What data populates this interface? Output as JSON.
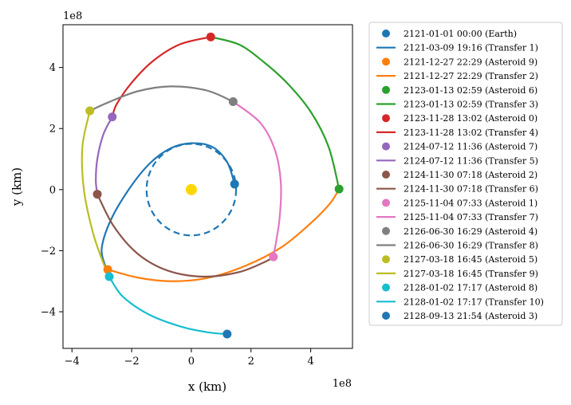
{
  "chart_data": {
    "type": "line",
    "xlabel": "x (km)",
    "ylabel": "y (km)",
    "x_multiplier": "1e8",
    "y_multiplier": "1e8",
    "xlim": [
      -4.3,
      5.4
    ],
    "ylim": [
      -5.2,
      5.4
    ],
    "x_unit_scale": 100000000,
    "xticks": [
      -4,
      -2,
      0,
      2,
      4
    ],
    "yticks": [
      -4,
      -2,
      0,
      2,
      4
    ],
    "grid": false,
    "legend_position": "outside-right",
    "sun": {
      "x": 0,
      "y": 0,
      "color": "#ffd700"
    },
    "earth_orbit": {
      "radius": 1.5,
      "color": "#1f77b4",
      "style": "dashed"
    },
    "series": [
      {
        "name": "2121-01-01 00:00 (Earth)",
        "kind": "point",
        "color": "#1f77b4",
        "x": [
          1.45
        ],
        "y": [
          0.18
        ]
      },
      {
        "name": "2121-03-09 19:16 (Transfer 1)",
        "kind": "line",
        "color": "#1f77b4",
        "x": [
          1.45,
          1.2,
          0.7,
          0.0,
          -0.7,
          -1.4,
          -2.1,
          -2.7,
          -3.0,
          -2.9,
          -2.8
        ],
        "y": [
          0.18,
          0.9,
          1.4,
          1.52,
          1.35,
          0.85,
          0.0,
          -1.0,
          -1.9,
          -2.45,
          -2.62
        ]
      },
      {
        "name": "2121-12-27 22:29 (Asteroid 9)",
        "kind": "point",
        "color": "#ff7f0e",
        "x": [
          -2.8
        ],
        "y": [
          -2.62
        ]
      },
      {
        "name": "2121-12-27 22:29 (Transfer 2)",
        "kind": "line",
        "color": "#ff7f0e",
        "x": [
          -2.8,
          -1.8,
          -0.7,
          0.5,
          1.8,
          3.0,
          4.0,
          4.65,
          4.95
        ],
        "y": [
          -2.62,
          -2.88,
          -3.0,
          -2.9,
          -2.5,
          -1.9,
          -1.1,
          -0.45,
          0.02
        ]
      },
      {
        "name": "2123-01-13 02:59 (Asteroid 6)",
        "kind": "point",
        "color": "#2ca02c",
        "x": [
          4.95
        ],
        "y": [
          0.02
        ]
      },
      {
        "name": "2123-01-13 02:59 (Transfer 3)",
        "kind": "line",
        "color": "#2ca02c",
        "x": [
          4.95,
          4.6,
          4.0,
          3.2,
          2.4,
          1.6,
          0.65
        ],
        "y": [
          0.02,
          1.4,
          2.55,
          3.5,
          4.2,
          4.75,
          5.0
        ]
      },
      {
        "name": "2123-11-28 13:02 (Asteroid 0)",
        "kind": "point",
        "color": "#d62728",
        "x": [
          0.65
        ],
        "y": [
          5.0
        ]
      },
      {
        "name": "2123-11-28 13:02 (Transfer 4)",
        "kind": "line",
        "color": "#d62728",
        "x": [
          0.65,
          -0.4,
          -1.3,
          -2.0,
          -2.5,
          -2.65
        ],
        "y": [
          5.0,
          4.75,
          4.2,
          3.5,
          2.8,
          2.38
        ]
      },
      {
        "name": "2124-07-12 11:36 (Asteroid 7)",
        "kind": "point",
        "color": "#9467bd",
        "x": [
          -2.65
        ],
        "y": [
          2.38
        ]
      },
      {
        "name": "2124-07-12 11:36 (Transfer 5)",
        "kind": "line",
        "color": "#9467bd",
        "x": [
          -2.65,
          -2.95,
          -3.15,
          -3.2,
          -3.15
        ],
        "y": [
          2.38,
          1.8,
          1.0,
          0.3,
          -0.15
        ]
      },
      {
        "name": "2124-11-30 07:18 (Asteroid 2)",
        "kind": "point",
        "color": "#8c564b",
        "x": [
          -3.15
        ],
        "y": [
          -0.15
        ]
      },
      {
        "name": "2124-11-30 07:18 (Transfer 6)",
        "kind": "line",
        "color": "#8c564b",
        "x": [
          -3.15,
          -2.6,
          -1.8,
          -0.8,
          0.4,
          1.6,
          2.5,
          2.75
        ],
        "y": [
          -0.15,
          -1.2,
          -2.1,
          -2.65,
          -2.85,
          -2.7,
          -2.35,
          -2.2
        ]
      },
      {
        "name": "2125-11-04 07:33 (Asteroid 1)",
        "kind": "point",
        "color": "#e377c2",
        "x": [
          2.75
        ],
        "y": [
          -2.2
        ]
      },
      {
        "name": "2125-11-04 07:33 (Transfer 7)",
        "kind": "line",
        "color": "#e377c2",
        "x": [
          2.75,
          2.95,
          3.0,
          2.8,
          2.3,
          1.4
        ],
        "y": [
          -2.2,
          -1.0,
          0.2,
          1.3,
          2.2,
          2.88
        ]
      },
      {
        "name": "2126-06-30 16:29 (Asteroid 4)",
        "kind": "point",
        "color": "#7f7f7f",
        "x": [
          1.4
        ],
        "y": [
          2.88
        ]
      },
      {
        "name": "2126-06-30 16:29 (Transfer 8)",
        "kind": "line",
        "color": "#7f7f7f",
        "x": [
          1.4,
          0.5,
          -0.7,
          -1.8,
          -2.8,
          -3.4
        ],
        "y": [
          2.88,
          3.25,
          3.38,
          3.22,
          2.85,
          2.58
        ]
      },
      {
        "name": "2127-03-18 16:45 (Asteroid 5)",
        "kind": "point",
        "color": "#bcbd22",
        "x": [
          -3.4
        ],
        "y": [
          2.58
        ]
      },
      {
        "name": "2127-03-18 16:45 (Transfer 9)",
        "kind": "line",
        "color": "#bcbd22",
        "x": [
          -3.4,
          -3.65,
          -3.6,
          -3.3,
          -2.95,
          -2.75
        ],
        "y": [
          2.58,
          1.4,
          0.0,
          -1.4,
          -2.4,
          -2.85
        ]
      },
      {
        "name": "2128-01-02 17:17 (Asteroid 8)",
        "kind": "point",
        "color": "#17becf",
        "x": [
          -2.75
        ],
        "y": [
          -2.85
        ]
      },
      {
        "name": "2128-01-02 17:17 (Transfer 10)",
        "kind": "line",
        "color": "#17becf",
        "x": [
          -2.75,
          -2.3,
          -1.4,
          -0.3,
          0.6,
          1.2
        ],
        "y": [
          -2.85,
          -3.5,
          -4.1,
          -4.5,
          -4.68,
          -4.73
        ]
      },
      {
        "name": "2128-09-13 21:54 (Asteroid 3)",
        "kind": "point",
        "color": "#1f77b4",
        "x": [
          1.2
        ],
        "y": [
          -4.73
        ]
      }
    ]
  }
}
